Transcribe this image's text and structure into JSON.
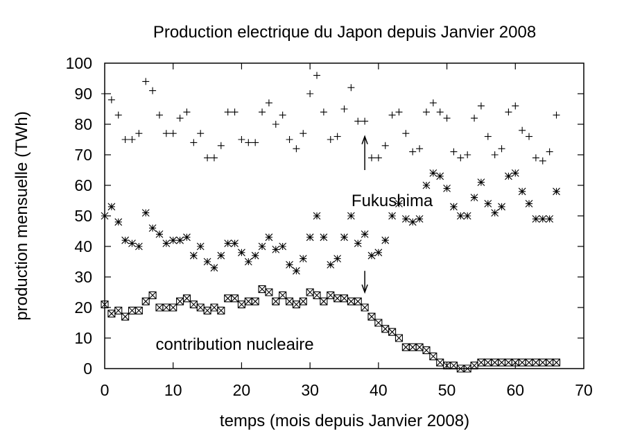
{
  "chart_data": {
    "type": "scatter",
    "title": "Production electrique du Japon depuis Janvier 2008",
    "xlabel": "temps (mois depuis Janvier 2008)",
    "ylabel": "production mensuelle (TWh)",
    "xlim": [
      0,
      70
    ],
    "ylim": [
      0,
      100
    ],
    "xticks": [
      0,
      10,
      20,
      30,
      40,
      50,
      60,
      70
    ],
    "yticks": [
      0,
      10,
      20,
      30,
      40,
      50,
      60,
      70,
      80,
      90,
      100
    ],
    "grid": false,
    "legend": "none",
    "series": [
      {
        "marker": "plus",
        "x": [
          0,
          1,
          2,
          3,
          4,
          5,
          6,
          7,
          8,
          9,
          10,
          11,
          12,
          13,
          14,
          15,
          16,
          17,
          18,
          19,
          20,
          21,
          22,
          23,
          24,
          25,
          26,
          27,
          28,
          29,
          30,
          31,
          32,
          33,
          34,
          35,
          36,
          37,
          38,
          39,
          40,
          41,
          42,
          43,
          44,
          45,
          46,
          47,
          48,
          49,
          50,
          51,
          52,
          53,
          54,
          55,
          56,
          57,
          58,
          59,
          60,
          61,
          62,
          63,
          64,
          65,
          66
        ],
        "y": [
          90,
          88,
          83,
          75,
          75,
          77,
          94,
          91,
          83,
          77,
          77,
          82,
          84,
          74,
          77,
          69,
          69,
          73,
          84,
          84,
          75,
          74,
          74,
          84,
          87,
          80,
          83,
          75,
          72,
          77,
          90,
          96,
          84,
          75,
          76,
          85,
          92,
          81,
          81,
          69,
          69,
          73,
          83,
          84,
          77,
          71,
          72,
          84,
          87,
          84,
          82,
          71,
          69,
          70,
          82,
          86,
          76,
          70,
          72,
          84,
          86,
          78,
          76,
          69,
          68,
          71,
          83
        ]
      },
      {
        "marker": "star",
        "x": [
          0,
          1,
          2,
          3,
          4,
          5,
          6,
          7,
          8,
          9,
          10,
          11,
          12,
          13,
          14,
          15,
          16,
          17,
          18,
          19,
          20,
          21,
          22,
          23,
          24,
          25,
          26,
          27,
          28,
          29,
          30,
          31,
          32,
          33,
          34,
          35,
          36,
          37,
          38,
          39,
          40,
          41,
          42,
          43,
          44,
          45,
          46,
          47,
          48,
          49,
          50,
          51,
          52,
          53,
          54,
          55,
          56,
          57,
          58,
          59,
          60,
          61,
          62,
          63,
          64,
          65,
          66
        ],
        "y": [
          50,
          53,
          48,
          42,
          41,
          40,
          51,
          46,
          44,
          41,
          42,
          42,
          43,
          37,
          40,
          35,
          33,
          37,
          41,
          41,
          38,
          35,
          37,
          40,
          43,
          39,
          40,
          34,
          32,
          36,
          43,
          50,
          43,
          34,
          36,
          43,
          50,
          41,
          44,
          37,
          38,
          42,
          50,
          54,
          49,
          48,
          49,
          60,
          64,
          63,
          59,
          53,
          50,
          50,
          56,
          61,
          54,
          51,
          53,
          63,
          64,
          58,
          54,
          49,
          49,
          49,
          58
        ]
      },
      {
        "marker": "boxed-x",
        "name": "contribution nucleaire",
        "x": [
          0,
          1,
          2,
          3,
          4,
          5,
          6,
          7,
          8,
          9,
          10,
          11,
          12,
          13,
          14,
          15,
          16,
          17,
          18,
          19,
          20,
          21,
          22,
          23,
          24,
          25,
          26,
          27,
          28,
          29,
          30,
          31,
          32,
          33,
          34,
          35,
          36,
          37,
          38,
          39,
          40,
          41,
          42,
          43,
          44,
          45,
          46,
          47,
          48,
          49,
          50,
          51,
          52,
          53,
          54,
          55,
          56,
          57,
          58,
          59,
          60,
          61,
          62,
          63,
          64,
          65,
          66
        ],
        "y": [
          21,
          18,
          19,
          17,
          19,
          19,
          22,
          24,
          20,
          20,
          20,
          22,
          23,
          21,
          20,
          19,
          20,
          19,
          23,
          23,
          21,
          22,
          22,
          26,
          25,
          22,
          24,
          22,
          21,
          22,
          25,
          24,
          22,
          24,
          23,
          23,
          22,
          22,
          20,
          17,
          15,
          13,
          12,
          10,
          7,
          7,
          7,
          6,
          4,
          2,
          1,
          1,
          0,
          0,
          1,
          2,
          2,
          2,
          2,
          2,
          2,
          2,
          2,
          2,
          2,
          2,
          2
        ]
      }
    ],
    "annotations": [
      {
        "text": "Fukushima",
        "x": 42,
        "y": 55
      },
      {
        "text": "contribution nucleaire",
        "x": 19,
        "y": 8
      }
    ],
    "arrows": [
      {
        "x": 38,
        "from_y": 65,
        "to_y": 76
      },
      {
        "x": 38,
        "from_y": 32,
        "to_y": 25
      }
    ]
  }
}
